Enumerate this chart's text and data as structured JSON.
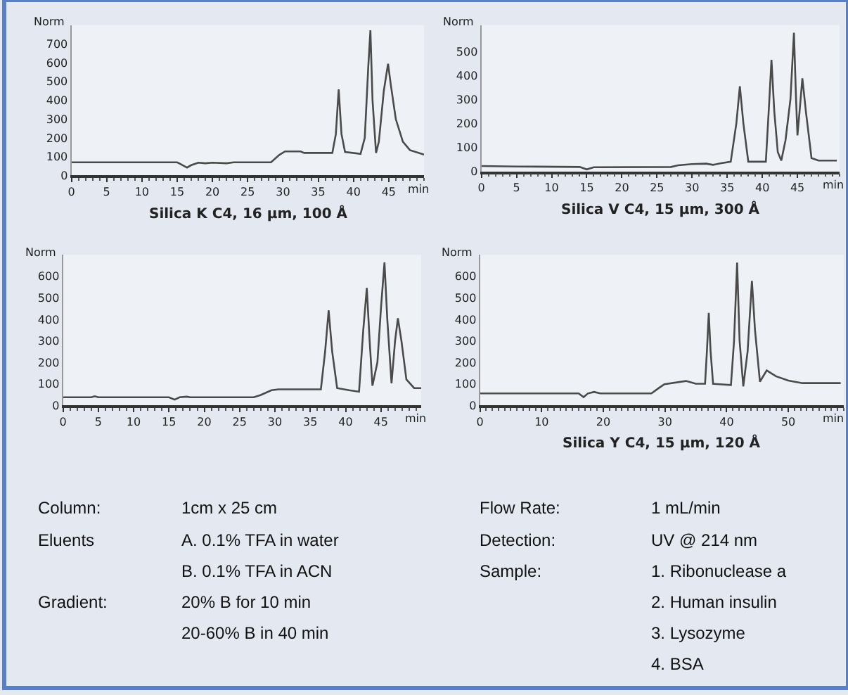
{
  "chart_data": [
    {
      "type": "line",
      "title": "Silica K C4, 16 µm, 100 Å",
      "xlabel": "min",
      "ylabel": "Norm",
      "xlim": [
        0,
        50
      ],
      "ylim": [
        0,
        800
      ],
      "xticks": [
        0,
        5,
        10,
        15,
        20,
        25,
        30,
        35,
        40,
        45
      ],
      "yticks": [
        0,
        100,
        200,
        300,
        400,
        500,
        600,
        700
      ],
      "grid": false,
      "series": [
        {
          "color": "#4a4a4a",
          "x": [
            0,
            15,
            16,
            16.4,
            17,
            18,
            19,
            20,
            22,
            23,
            28.3,
            29.5,
            30.3,
            32.5,
            33,
            37,
            37.5,
            37.9,
            38.3,
            38.8,
            41,
            41.6,
            42.1,
            42.4,
            42.7,
            43.2,
            43.6,
            44.3,
            44.9,
            45.3,
            46,
            47,
            48,
            50
          ],
          "values": [
            70,
            70,
            50,
            42,
            55,
            68,
            65,
            68,
            65,
            70,
            70,
            110,
            128,
            128,
            120,
            120,
            220,
            458,
            220,
            125,
            115,
            200,
            580,
            772,
            400,
            120,
            180,
            450,
            594,
            480,
            300,
            180,
            135,
            111
          ]
        }
      ]
    },
    {
      "type": "line",
      "title": "Silica V C4, 15 µm, 300 Å",
      "xlabel": "min",
      "ylabel": "Norm",
      "xlim": [
        0,
        51
      ],
      "ylim": [
        0,
        610
      ],
      "xticks": [
        0,
        5,
        10,
        15,
        20,
        25,
        30,
        35,
        40,
        45
      ],
      "yticks": [
        0,
        100,
        200,
        300,
        400,
        500
      ],
      "grid": false,
      "series": [
        {
          "color": "#4a4a4a",
          "x": [
            0,
            5,
            14,
            15,
            16,
            27,
            28,
            30,
            32,
            33,
            34,
            35.5,
            36.3,
            36.8,
            37.3,
            38,
            40.5,
            41,
            41.3,
            41.7,
            42.2,
            42.7,
            43.3,
            44,
            44.5,
            44.8,
            45,
            45.3,
            45.7,
            46.2,
            47,
            48,
            50.6
          ],
          "values": [
            22,
            20,
            18,
            8,
            17,
            18,
            25,
            30,
            32,
            27,
            33,
            40,
            200,
            355,
            200,
            40,
            40,
            300,
            465,
            250,
            80,
            45,
            130,
            300,
            578,
            300,
            150,
            250,
            388,
            250,
            55,
            45,
            45
          ]
        }
      ]
    },
    {
      "type": "line",
      "xlabel": "min",
      "ylabel": "Norm",
      "xlim": [
        0,
        50.7
      ],
      "ylim": [
        0,
        700
      ],
      "xticks": [
        0,
        5,
        10,
        15,
        20,
        25,
        30,
        35,
        40,
        45
      ],
      "yticks": [
        0,
        100,
        200,
        300,
        400,
        500,
        600
      ],
      "grid": false,
      "series": [
        {
          "color": "#4a4a4a",
          "x": [
            0,
            4,
            4.5,
            5,
            15,
            15.8,
            16.5,
            17.5,
            18,
            27,
            28,
            29.5,
            30.5,
            36.5,
            37.1,
            37.6,
            38.1,
            38.8,
            40.5,
            41.9,
            42.5,
            43,
            43.4,
            43.8,
            44.5,
            45,
            45.5,
            45.9,
            46.5,
            47,
            47.4,
            47.9,
            48.6,
            49.7,
            50.7
          ],
          "values": [
            37,
            37,
            42,
            37,
            37,
            26,
            37,
            40,
            37,
            37,
            48,
            70,
            74,
            74,
            250,
            442,
            250,
            80,
            70,
            63,
            350,
            546,
            300,
            91,
            200,
            450,
            665,
            400,
            102,
            300,
            405,
            300,
            120,
            80,
            80
          ]
        }
      ]
    },
    {
      "type": "line",
      "title": "Silica Y C4, 15 µm, 120 Å",
      "xlabel": "min",
      "ylabel": "Norm",
      "xlim": [
        0,
        59
      ],
      "ylim": [
        0,
        700
      ],
      "xticks": [
        0,
        10,
        20,
        30,
        40,
        50
      ],
      "yticks": [
        0,
        100,
        200,
        300,
        400,
        500,
        600
      ],
      "grid": false,
      "series": [
        {
          "color": "#4a4a4a",
          "x": [
            0,
            16,
            16.8,
            17.5,
            18.5,
            19.5,
            27.8,
            29,
            29.9,
            33.4,
            35,
            36.5,
            36.8,
            37.1,
            37.4,
            37.8,
            40.7,
            41.2,
            41.7,
            42.1,
            42.7,
            43.4,
            44.1,
            44.6,
            45.4,
            46.5,
            48,
            50,
            52.3,
            58.5
          ],
          "values": [
            55,
            55,
            38,
            55,
            62,
            55,
            55,
            80,
            98,
            113,
            100,
            100,
            250,
            430,
            250,
            100,
            94,
            300,
            664,
            300,
            88,
            250,
            579,
            350,
            110,
            162,
            135,
            115,
            103,
            103
          ]
        }
      ]
    },
    {
      "type": "other",
      "annotations": [
        "Column:",
        "1cm x 25 cm",
        "Flow Rate:",
        "1 mL/min",
        "Eluents",
        "A. 0.1% TFA in water",
        "Detection:",
        "UV @ 214 nm",
        "B. 0.1% TFA in ACN",
        "Sample:",
        "1. Ribonuclease a",
        "Gradient:",
        "20% B for 10 min",
        "2. Human insulin",
        "20-60% B in 40 min",
        "3. Lysozyme",
        "4. BSA"
      ]
    }
  ]
}
